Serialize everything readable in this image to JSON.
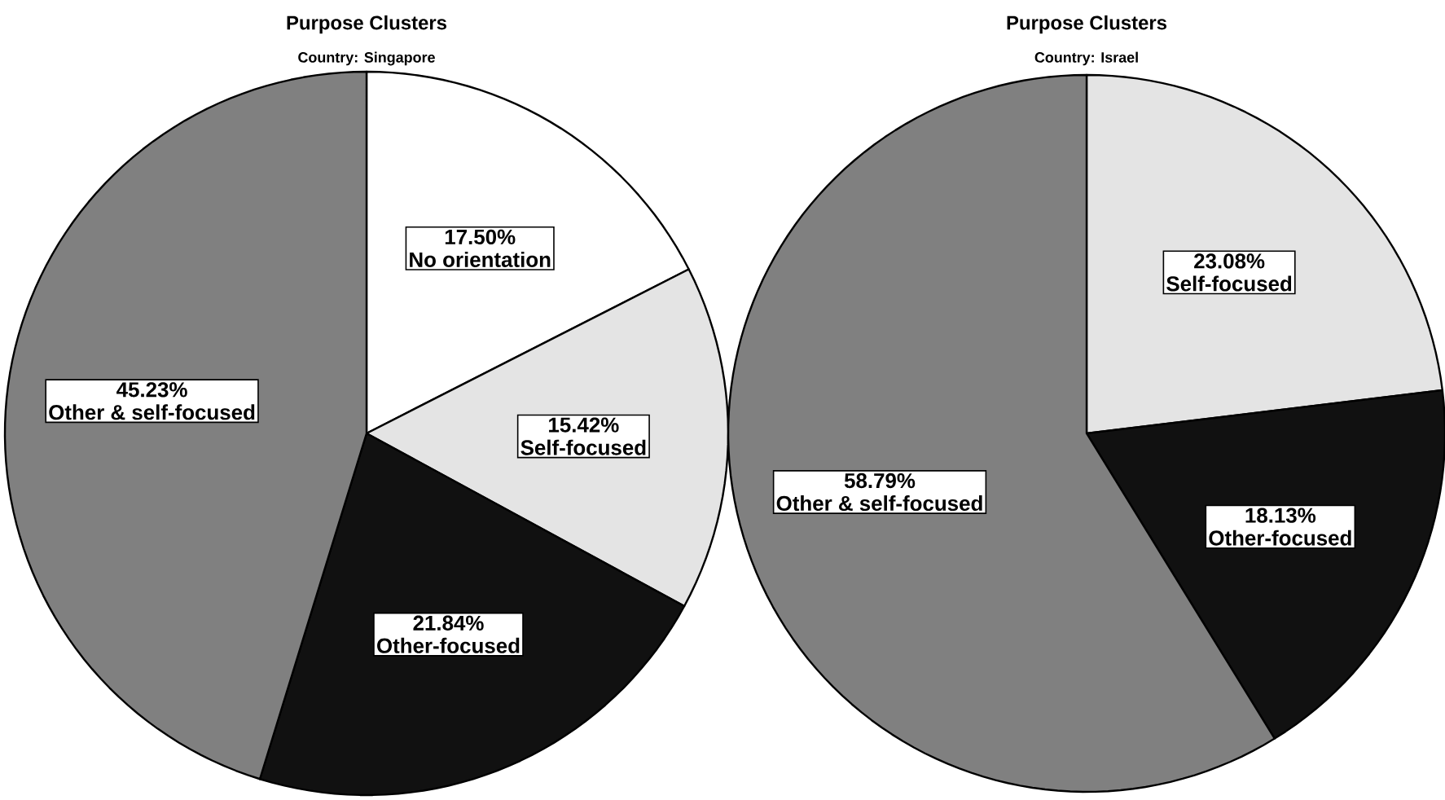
{
  "chart_data": [
    {
      "type": "pie",
      "title": "Purpose Clusters",
      "subtitle": "Country: Singapore",
      "categories": [
        "No orientation",
        "Self-focused",
        "Other-focused",
        "Other & self-focused"
      ],
      "values": [
        17.5,
        15.42,
        21.84,
        45.23
      ],
      "value_labels": [
        "17.50%",
        "15.42%",
        "21.84%",
        "45.23%"
      ],
      "colors": [
        "#ffffff",
        "#e4e4e4",
        "#111111",
        "#808080"
      ]
    },
    {
      "type": "pie",
      "title": "Purpose Clusters",
      "subtitle": "Country: Israel",
      "categories": [
        "Self-focused",
        "Other-focused",
        "Other & self-focused"
      ],
      "values": [
        23.08,
        18.13,
        58.79
      ],
      "value_labels": [
        "23.08%",
        "18.13%",
        "58.79%"
      ],
      "colors": [
        "#e4e4e4",
        "#111111",
        "#808080"
      ]
    }
  ]
}
